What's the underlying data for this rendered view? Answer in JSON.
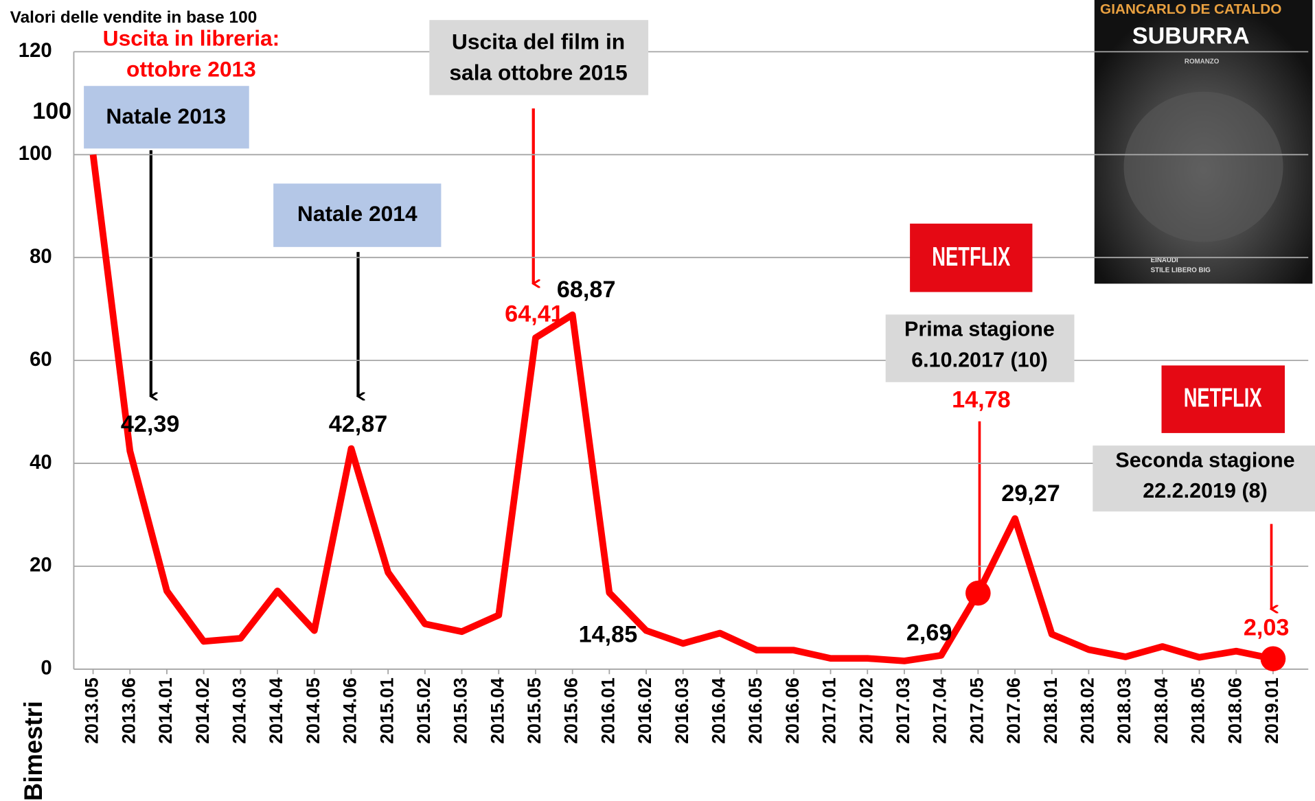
{
  "chart_data": {
    "type": "line",
    "y_axis_title": "Valori delle vendite  in base 100",
    "x_axis_label": "Bimestri",
    "categories": [
      "2013.05",
      "2013.06",
      "2014.01",
      "2014.02",
      "2014.03",
      "2014.04",
      "2014.05",
      "2014.06",
      "2015.01",
      "2015.02",
      "2015.03",
      "2015.04",
      "2015.05",
      "2015.06",
      "2016.01",
      "2016.02",
      "2016.03",
      "2016.04",
      "2016.05",
      "2016.06",
      "2017.01",
      "2017.02",
      "2017.03",
      "2017.04",
      "2017.05",
      "2017.06",
      "2018.01",
      "2018.02",
      "2018.03",
      "2018.04",
      "2018.05",
      "2018.06",
      "2019.01"
    ],
    "series": [
      {
        "name": null,
        "color": "#ff0000",
        "values": [
          100,
          42.39,
          15.2,
          5.4,
          6,
          15.2,
          7.5,
          42.87,
          18.8,
          8.8,
          7.3,
          10.5,
          64.41,
          68.87,
          14.85,
          7.5,
          5,
          7,
          3.7,
          3.7,
          2.1,
          2.1,
          1.6,
          2.69,
          14.78,
          29.27,
          6.8,
          3.8,
          2.4,
          4.4,
          2.3,
          3.5,
          2.03
        ],
        "value_labels": [
          "100",
          "42,39",
          null,
          null,
          null,
          null,
          null,
          "42,87",
          null,
          null,
          null,
          null,
          "64,41",
          "68,87",
          "14,85",
          null,
          null,
          null,
          null,
          null,
          null,
          null,
          null,
          "2,69",
          "14,78",
          "29,27",
          null,
          null,
          null,
          null,
          null,
          null,
          "2,03"
        ],
        "value_label_colors": [
          "#000000",
          "#000000",
          null,
          null,
          null,
          null,
          null,
          "#000000",
          null,
          null,
          null,
          null,
          "#ff0000",
          "#000000",
          "#000000",
          null,
          null,
          null,
          null,
          null,
          null,
          null,
          null,
          "#000000",
          "#ff0000",
          "#000000",
          null,
          null,
          null,
          null,
          null,
          null,
          "#ff0000"
        ],
        "highlighted": [
          24,
          32
        ]
      }
    ],
    "ylim": [
      0,
      120
    ],
    "yticks": [
      0,
      20,
      40,
      60,
      80,
      100,
      120
    ],
    "grid": true,
    "annotations": [
      {
        "lines": [
          "Uscita in libreria:",
          "ottobre 2013"
        ],
        "color": "#ff0000"
      },
      {
        "lines": [
          "Natale 2013"
        ],
        "color": "#000000",
        "box": "#b4c7e7"
      },
      {
        "lines": [
          "Natale 2014"
        ],
        "color": "#000000",
        "box": "#b4c7e7"
      },
      {
        "lines": [
          "Uscita del film in",
          "sala ottobre 2015"
        ],
        "color": "#000000",
        "box": "#d9d9d9"
      },
      {
        "lines": [
          "NETFLIX"
        ],
        "color": "#ffffff",
        "box": "#e50914"
      },
      {
        "lines": [
          "Prima stagione",
          "6.10.2017 (10)"
        ],
        "color": "#000000",
        "box": "#d9d9d9"
      },
      {
        "lines": [
          "NETFLIX"
        ],
        "color": "#ffffff",
        "box": "#e50914"
      },
      {
        "lines": [
          "Seconda stagione",
          "22.2.2019 (8)"
        ],
        "color": "#000000",
        "box": "#d9d9d9"
      }
    ],
    "cover": {
      "author": "GIANCARLO DE CATALDO",
      "title": "SUBURRA",
      "genre": "ROMANZO",
      "publisher": "EINAUDI",
      "series": "STILE LIBERO BIG"
    }
  }
}
